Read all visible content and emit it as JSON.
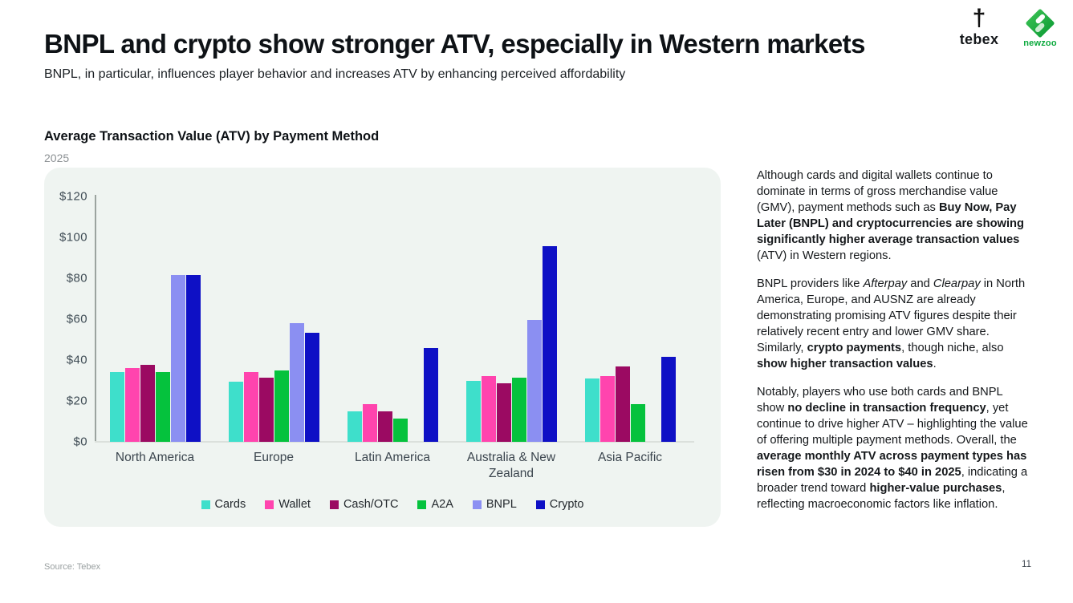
{
  "header": {
    "title": "BNPL and crypto show stronger ATV, especially in Western markets",
    "subtitle": "BNPL, in particular, influences player behavior and increases ATV by enhancing perceived affordability",
    "logos": {
      "tebex": "tebex",
      "newzoo": "newzoo",
      "tebex_icon": "†"
    }
  },
  "chart": {
    "title": "Average Transaction Value (ATV) by Payment Method",
    "year": "2025"
  },
  "chart_data": {
    "type": "bar",
    "title": "Average Transaction Value (ATV) by Payment Method",
    "subtitle": "2025",
    "categories": [
      "North America",
      "Europe",
      "Latin America",
      "Australia & New Zealand",
      "Asia Pacific"
    ],
    "series": [
      {
        "name": "Cards",
        "color": "#3EDFCB",
        "values": [
          34,
          29.5,
          15,
          30,
          31
        ]
      },
      {
        "name": "Wallet",
        "color": "#FF44AE",
        "values": [
          36,
          34,
          18.5,
          32,
          32
        ]
      },
      {
        "name": "Cash/OTC",
        "color": "#9B0A62",
        "values": [
          37.5,
          31.5,
          15,
          28.5,
          37
        ]
      },
      {
        "name": "A2A",
        "color": "#05C23D",
        "values": [
          34,
          35,
          11.5,
          31.5,
          18.5
        ]
      },
      {
        "name": "BNPL",
        "color": "#8B8FF2",
        "values": [
          81.5,
          58,
          null,
          59.5,
          null
        ]
      },
      {
        "name": "Crypto",
        "color": "#0E10C5",
        "values": [
          81.5,
          53.5,
          46,
          95.5,
          41.5
        ]
      }
    ],
    "ylim": [
      0,
      120
    ],
    "ytick_step": 20,
    "ytick_labels": [
      "$0",
      "$20",
      "$40",
      "$60",
      "$80",
      "$100",
      "$120"
    ],
    "grid": false,
    "legend_position": "bottom"
  },
  "sidebar": {
    "paragraphs": [
      [
        {
          "t": "Although cards and digital wallets continue to dominate in terms of gross merchandise value (GMV), payment methods such as "
        },
        {
          "t": "Buy Now, Pay Later (BNPL) and cryptocurrencies are showing significantly higher average transaction values",
          "b": true
        },
        {
          "t": " (ATV) in Western regions."
        }
      ],
      [
        {
          "t": "BNPL providers like "
        },
        {
          "t": "Afterpay",
          "i": true
        },
        {
          "t": " and "
        },
        {
          "t": "Clearpay",
          "i": true
        },
        {
          "t": " in North America, Europe, and AUSNZ are already demonstrating promising ATV figures despite their relatively recent entry and lower GMV share. Similarly, "
        },
        {
          "t": "crypto payments",
          "b": true
        },
        {
          "t": ", though niche, also "
        },
        {
          "t": "show higher transaction values",
          "b": true
        },
        {
          "t": "."
        }
      ],
      [
        {
          "t": "Notably, players who use both cards and BNPL show "
        },
        {
          "t": "no decline in transaction frequency",
          "b": true
        },
        {
          "t": ", yet continue to drive higher ATV – highlighting the value of offering multiple payment methods. Overall, the "
        },
        {
          "t": "average monthly ATV across payment types has risen from $30 in 2024 to $40 in 2025",
          "b": true
        },
        {
          "t": ", indicating a broader trend toward "
        },
        {
          "t": "higher-value purchases",
          "b": true
        },
        {
          "t": ", reflecting macroeconomic factors like inflation."
        }
      ]
    ]
  },
  "footer": {
    "source": "Source: Tebex",
    "page": "11"
  }
}
